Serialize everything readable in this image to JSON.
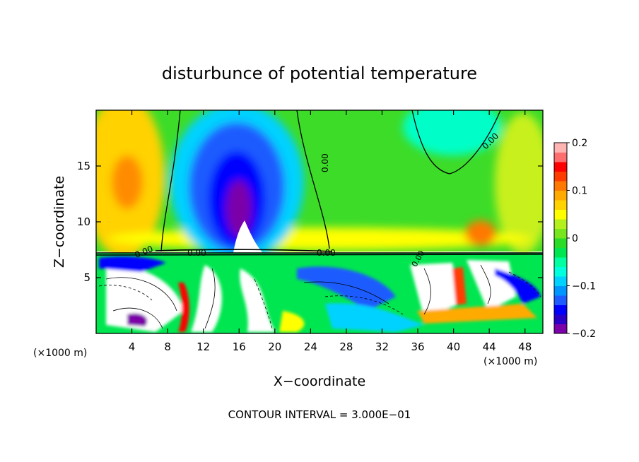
{
  "chart_data": {
    "type": "heatmap",
    "title": "disturbunce of potential temperature",
    "xlabel": "X−coordinate",
    "ylabel": "Z−coordinate",
    "x_unit_label": "(×1000 m)",
    "y_unit_label": "(×1000 m)",
    "xlim": [
      0,
      50
    ],
    "ylim": [
      0,
      20
    ],
    "x_ticks": [
      4,
      8,
      12,
      16,
      20,
      24,
      28,
      32,
      36,
      40,
      44,
      48
    ],
    "y_ticks": [
      5,
      10,
      15
    ],
    "colorbar": {
      "range": [
        -0.2,
        0.2
      ],
      "tick_values": [
        0.2,
        0.1,
        0,
        -0.1,
        -0.2
      ],
      "tick_labels": [
        "0.2",
        "0.1",
        "0",
        "−0.1",
        "−0.2"
      ],
      "colors": [
        "#7b00a8",
        "#2a00c8",
        "#0000ff",
        "#1f5cff",
        "#0096ff",
        "#00d2ff",
        "#00ffdc",
        "#00ffa0",
        "#00e650",
        "#28dc28",
        "#78e61e",
        "#b4f01e",
        "#ffff00",
        "#ffd200",
        "#ffaa00",
        "#ff7800",
        "#ff3c00",
        "#ff0000",
        "#ff6e6e",
        "#ffb4b4"
      ]
    },
    "contour_labels": [
      "0.00",
      "0.00",
      "0.00",
      "0.00",
      "0.00",
      "0.00"
    ],
    "footer": "CONTOUR INTERVAL = 3.000E−01"
  }
}
